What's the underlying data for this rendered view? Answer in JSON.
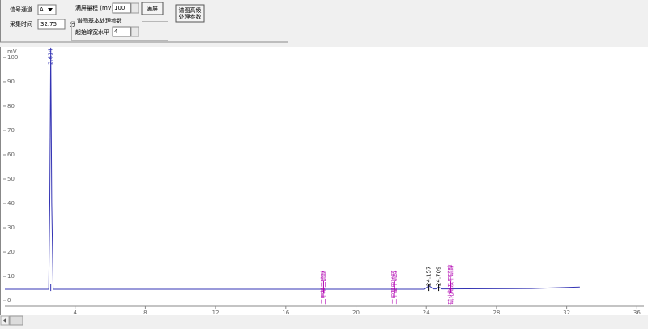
{
  "toolbar": {
    "channel_label": "信号通道",
    "channel_value": "A",
    "time_label": "采集时间",
    "time_value": "32.75",
    "time_unit": "分",
    "range_label": "满屏量程 (mV)",
    "range_value": "100",
    "fullscreen_button": "满屏",
    "group_title": "谱图基本处理参数",
    "width_label": "起始峰宽水平",
    "width_value": "4",
    "advanced_button": [
      "谱图高级",
      "处理参数"
    ]
  },
  "chart_data": {
    "type": "line",
    "y_unit": "mV",
    "xlim": [
      0,
      36.4
    ],
    "ylim": [
      -2.3,
      104.3
    ],
    "xticks": [
      4,
      8,
      12,
      16,
      20,
      24,
      28,
      32,
      36
    ],
    "yticks": [
      0,
      10,
      20,
      30,
      40,
      50,
      60,
      70,
      80,
      90,
      100
    ],
    "x": [
      0,
      2.5,
      2.56,
      2.614,
      2.67,
      2.75,
      23.9,
      24.157,
      24.4,
      24.55,
      24.709,
      24.9,
      30,
      32.75
    ],
    "series": [
      {
        "color": "#3434b4",
        "values": [
          4.7,
          4.7,
          40,
          104,
          40,
          4.7,
          4.7,
          6.2,
          4.8,
          4.8,
          5.6,
          4.8,
          5,
          5.6
        ]
      }
    ],
    "peaks": [
      {
        "x": 2.614,
        "color": "#3434b4"
      },
      {
        "x": 24.157,
        "color": "#000000"
      },
      {
        "x": 24.709,
        "color": "#000000"
      }
    ],
    "compounds": [
      {
        "x": 18.15,
        "label": "二甲基二硫醚"
      },
      {
        "x": 22.2,
        "label": "三甲基甲硫醇"
      },
      {
        "x": 25.4,
        "label": "硫化羰及甲硫醇"
      }
    ],
    "compound_color": "#b000b0"
  }
}
